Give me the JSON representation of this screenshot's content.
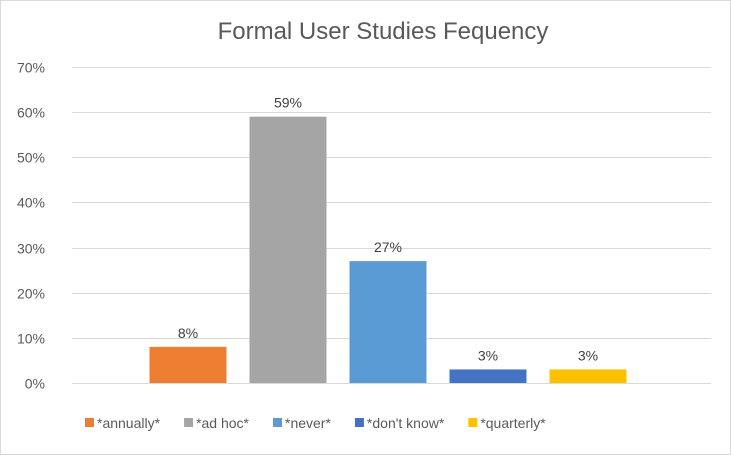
{
  "chart_data": {
    "type": "bar",
    "title": "Formal User Studies Fequency",
    "xlabel": "",
    "ylabel": "",
    "ylim": [
      0,
      70
    ],
    "y_ticks": [
      0,
      10,
      20,
      30,
      40,
      50,
      60,
      70
    ],
    "y_tick_labels": [
      "0%",
      "10%",
      "20%",
      "30%",
      "40%",
      "50%",
      "60%",
      "70%"
    ],
    "grid": true,
    "legend_position": "bottom",
    "series": [
      {
        "name": "*annually*",
        "value": 8,
        "label": "8%",
        "color": "#ed7d31"
      },
      {
        "name": "*ad hoc*",
        "value": 59,
        "label": "59%",
        "color": "#a5a5a5"
      },
      {
        "name": "*never*",
        "value": 27,
        "label": "27%",
        "color": "#5b9bd5"
      },
      {
        "name": "*don't know*",
        "value": 3,
        "label": "3%",
        "color": "#4472c4"
      },
      {
        "name": "*quarterly*",
        "value": 3,
        "label": "3%",
        "color": "#ffc000"
      }
    ]
  }
}
